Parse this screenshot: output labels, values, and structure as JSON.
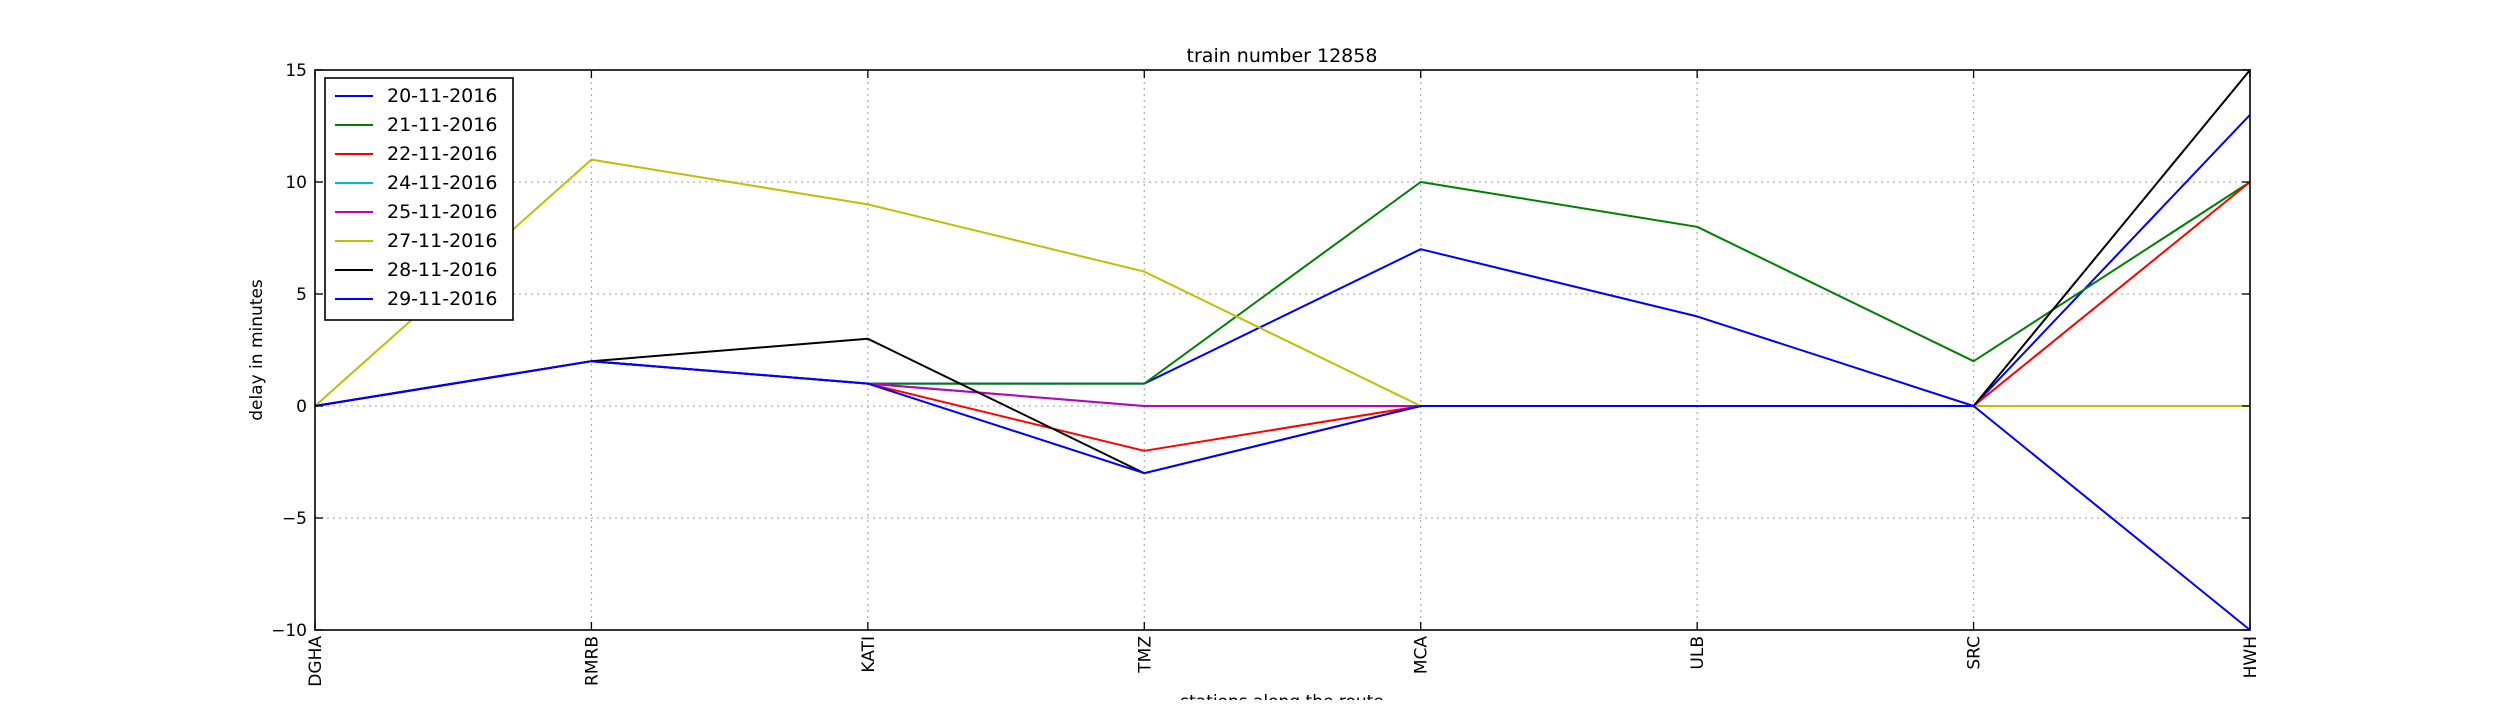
{
  "chart_data": {
    "type": "line",
    "title": "train number 12858",
    "xlabel": "stations along the route",
    "ylabel": "delay in minutes",
    "categories": [
      "DGHA",
      "RMRB",
      "KATI",
      "TMZ",
      "MCA",
      "ULB",
      "SRC",
      "HWH"
    ],
    "ylim": [
      -10,
      15
    ],
    "yticks": [
      -10,
      -5,
      0,
      5,
      10,
      15
    ],
    "ytick_labels": [
      "−10",
      "−5",
      "0",
      "5",
      "10",
      "15"
    ],
    "grid": true,
    "legend_position": "top-left",
    "series": [
      {
        "name": "20-11-2016",
        "color": "#0000ff",
        "values": [
          0,
          2,
          1,
          1,
          7,
          4,
          0,
          13
        ]
      },
      {
        "name": "21-11-2016",
        "color": "#008000",
        "values": [
          0,
          2,
          1,
          1,
          10,
          8,
          2,
          10
        ]
      },
      {
        "name": "22-11-2016",
        "color": "#ff0000",
        "values": [
          0,
          2,
          1,
          -2,
          0,
          0,
          0,
          10
        ]
      },
      {
        "name": "24-11-2016",
        "color": "#00bfbf",
        "values": [
          0,
          2,
          1,
          0,
          0,
          0,
          0,
          0
        ]
      },
      {
        "name": "25-11-2016",
        "color": "#bf00bf",
        "values": [
          0,
          2,
          1,
          0,
          0,
          0,
          0,
          0
        ]
      },
      {
        "name": "27-11-2016",
        "color": "#bfbf00",
        "values": [
          0,
          11,
          9,
          6,
          0,
          0,
          0,
          0
        ]
      },
      {
        "name": "28-11-2016",
        "color": "#000000",
        "values": [
          0,
          2,
          3,
          -3,
          0,
          0,
          0,
          15
        ]
      },
      {
        "name": "29-11-2016",
        "color": "#0000ff",
        "values": [
          0,
          2,
          1,
          -3,
          0,
          0,
          0,
          -10
        ]
      }
    ]
  }
}
